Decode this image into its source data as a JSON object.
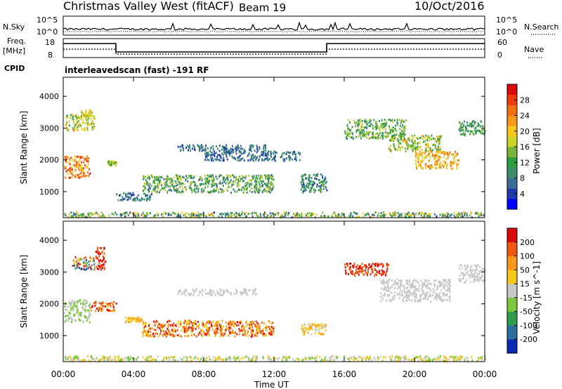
{
  "header": {
    "title": "Christmas Valley West (fitACF)",
    "beam": "Beam 19",
    "date": "10/Oct/2016"
  },
  "strip_panels": {
    "nsky_label": "N.Sky",
    "nsearch_label": "N.Search",
    "noise_ticks_left": [
      "10^5",
      "10^0"
    ],
    "noise_ticks_right": [
      "10^5",
      "10^0"
    ],
    "freq_label_lines": [
      "Freq.",
      "[MHz]"
    ],
    "freq_ticks": [
      "18",
      "8"
    ],
    "nave_label": "Nave",
    "nave_ticks": [
      "60",
      "0"
    ],
    "cpid_label": "CPID",
    "cpid_text": "interleavedscan (fast) -191 RF"
  },
  "chart_data": [
    {
      "type": "heatmap",
      "panel": "power",
      "ylabel": "Slant Range [km]",
      "xlabel": "Time UT",
      "x_ticks": [
        "00:00",
        "04:00",
        "08:00",
        "12:00",
        "16:00",
        "20:00",
        "00:00"
      ],
      "x_range_hours": [
        0,
        24
      ],
      "y_ticks": [
        1000,
        2000,
        3000,
        4000
      ],
      "y_range_km": [
        180,
        4600
      ],
      "colorbar": {
        "label": "Power [dB]",
        "ticks": [
          "28",
          "24",
          "20",
          "16",
          "12",
          "8",
          "4"
        ],
        "range": [
          0,
          32
        ],
        "colors": [
          "#0000ff",
          "#1e3ca8",
          "#3a6e96",
          "#3e8c6e",
          "#2e9e3e",
          "#7ab43c",
          "#ccd42a",
          "#f8c818",
          "#f8981a",
          "#f46e12",
          "#f03c0c",
          "#dc0a0a"
        ]
      },
      "scatter_regions": [
        {
          "t": [
            0.05,
            1.5
          ],
          "r": [
            1450,
            2150
          ],
          "p": [
            18,
            30
          ]
        },
        {
          "t": [
            0.1,
            1.8
          ],
          "r": [
            2950,
            3450
          ],
          "p": [
            12,
            22
          ]
        },
        {
          "t": [
            1.0,
            1.6
          ],
          "r": [
            3350,
            3600
          ],
          "p": [
            14,
            22
          ]
        },
        {
          "t": [
            2.5,
            3.0
          ],
          "r": [
            1850,
            2000
          ],
          "p": [
            12,
            20
          ]
        },
        {
          "t": [
            4.5,
            12.0
          ],
          "r": [
            1000,
            1550
          ],
          "p": [
            6,
            18
          ]
        },
        {
          "t": [
            3.0,
            5.0
          ],
          "r": [
            750,
            1000
          ],
          "p": [
            4,
            12
          ]
        },
        {
          "t": [
            6.5,
            11.5
          ],
          "r": [
            2300,
            2500
          ],
          "p": [
            4,
            10
          ]
        },
        {
          "t": [
            8.0,
            13.5
          ],
          "r": [
            2000,
            2300
          ],
          "p": [
            4,
            10
          ]
        },
        {
          "t": [
            13.5,
            15.0
          ],
          "r": [
            1000,
            1600
          ],
          "p": [
            4,
            14
          ]
        },
        {
          "t": [
            16.0,
            19.5
          ],
          "r": [
            2700,
            3300
          ],
          "p": [
            8,
            18
          ]
        },
        {
          "t": [
            18.5,
            21.5
          ],
          "r": [
            2300,
            2800
          ],
          "p": [
            10,
            22
          ]
        },
        {
          "t": [
            20.0,
            22.5
          ],
          "r": [
            1750,
            2300
          ],
          "p": [
            16,
            26
          ]
        },
        {
          "t": [
            22.5,
            24.0
          ],
          "r": [
            2800,
            3250
          ],
          "p": [
            8,
            16
          ]
        },
        {
          "t": [
            0.0,
            24.0
          ],
          "r": [
            220,
            380
          ],
          "p": [
            4,
            22
          ]
        }
      ]
    },
    {
      "type": "heatmap",
      "panel": "velocity",
      "ylabel": "Slant Range [km]",
      "xlabel": "Time UT",
      "x_ticks": [
        "00:00",
        "04:00",
        "08:00",
        "12:00",
        "16:00",
        "20:00",
        "00:00"
      ],
      "x_range_hours": [
        0,
        24
      ],
      "y_ticks": [
        1000,
        2000,
        3000,
        4000
      ],
      "y_range_km": [
        180,
        4600
      ],
      "colorbar": {
        "label": "Velocity [m s^-1]",
        "ticks": [
          "200",
          "100",
          "50",
          "15",
          "-15",
          "-50",
          "-100",
          "-200"
        ],
        "colors": [
          "#0a2ab4",
          "#2c6ea0",
          "#2e9e4e",
          "#7cc83c",
          "#c8c8c8",
          "#f8c818",
          "#f8981a",
          "#f0580c",
          "#dc0a0a"
        ]
      },
      "scatter_regions": [
        {
          "t": [
            0.05,
            1.5
          ],
          "r": [
            1450,
            2150
          ],
          "c": [
            3,
            4
          ]
        },
        {
          "t": [
            1.5,
            3.0
          ],
          "r": [
            1800,
            2100
          ],
          "c": [
            6,
            8
          ]
        },
        {
          "t": [
            0.5,
            1.8
          ],
          "r": [
            3100,
            3500
          ],
          "c": [
            0,
            8
          ]
        },
        {
          "t": [
            1.8,
            2.4
          ],
          "r": [
            3100,
            3800
          ],
          "c": [
            7,
            8
          ]
        },
        {
          "t": [
            4.5,
            12.0
          ],
          "r": [
            1000,
            1500
          ],
          "c": [
            5,
            8
          ]
        },
        {
          "t": [
            3.5,
            4.5
          ],
          "r": [
            1450,
            1600
          ],
          "c": [
            5,
            6
          ]
        },
        {
          "t": [
            6.5,
            11.0
          ],
          "r": [
            2300,
            2500
          ],
          "c": [
            4,
            4
          ]
        },
        {
          "t": [
            13.5,
            15.0
          ],
          "r": [
            1050,
            1400
          ],
          "c": [
            4,
            6
          ]
        },
        {
          "t": [
            16.0,
            18.5
          ],
          "r": [
            2900,
            3300
          ],
          "c": [
            7,
            8
          ]
        },
        {
          "t": [
            18.0,
            22.0
          ],
          "r": [
            2100,
            2800
          ],
          "c": [
            4,
            4
          ]
        },
        {
          "t": [
            22.5,
            24.0
          ],
          "r": [
            2700,
            3250
          ],
          "c": [
            4,
            4
          ]
        },
        {
          "t": [
            0.0,
            24.0
          ],
          "r": [
            220,
            380
          ],
          "c": [
            3,
            5
          ]
        }
      ]
    }
  ]
}
